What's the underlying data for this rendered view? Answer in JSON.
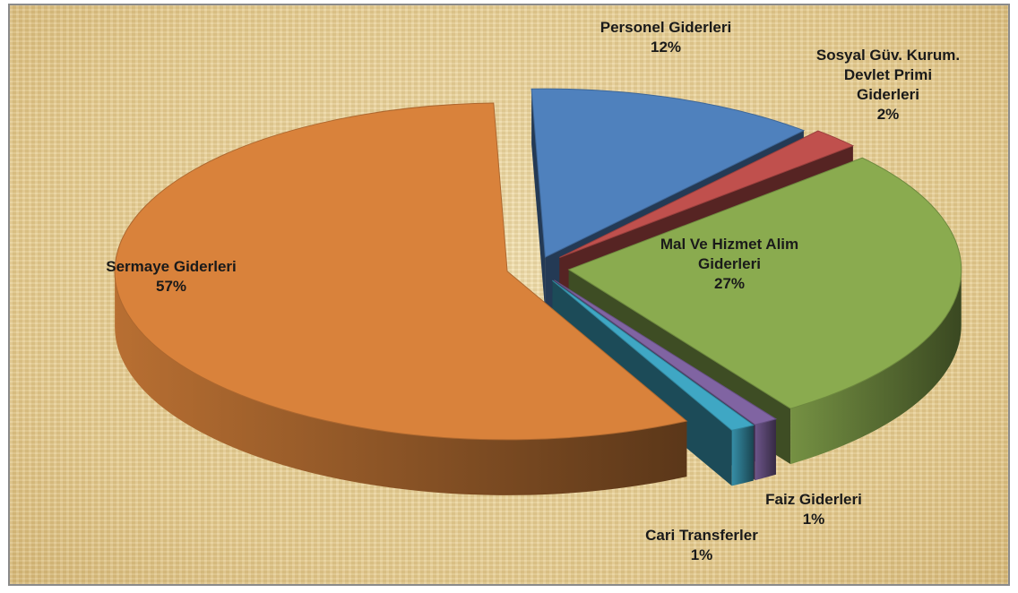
{
  "chart_data": {
    "type": "pie",
    "title": "",
    "slices": [
      {
        "name": "Personel Giderleri",
        "lines": [
          "Personel Giderleri"
        ],
        "pct_label": "12%",
        "value": 12,
        "color": "#4f81bd"
      },
      {
        "name": "Sosyal Güv. Kurum. Devlet Primi Giderleri",
        "lines": [
          "Sosyal Güv. Kurum.",
          "Devlet Primi",
          "Giderleri"
        ],
        "pct_label": "2%",
        "value": 2,
        "color": "#c0504d"
      },
      {
        "name": "Mal Ve Hizmet Alim Giderleri",
        "lines": [
          "Mal Ve Hizmet Alim",
          "Giderleri"
        ],
        "pct_label": "27%",
        "value": 27,
        "color": "#8aab4f"
      },
      {
        "name": "Faiz Giderleri",
        "lines": [
          "Faiz Giderleri"
        ],
        "pct_label": "1%",
        "value": 1,
        "color": "#8064a2"
      },
      {
        "name": "Cari Transferler",
        "lines": [
          "Cari Transferler"
        ],
        "pct_label": "1%",
        "value": 1,
        "color": "#3fa7c4"
      },
      {
        "name": "Sermaye Giderleri",
        "lines": [
          "Sermaye Giderleri"
        ],
        "pct_label": "57%",
        "value": 57,
        "color": "#d9823b"
      }
    ]
  }
}
